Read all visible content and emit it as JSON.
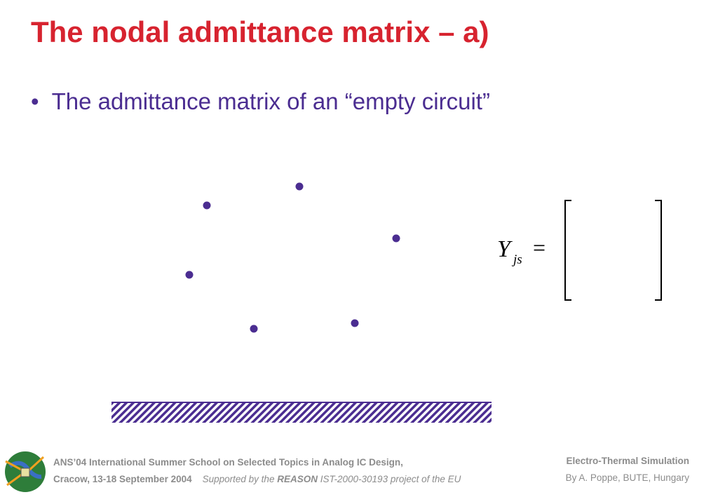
{
  "title": "The nodal admittance matrix – a)",
  "bullets": [
    "The admittance matrix of an “empty circuit”"
  ],
  "formula": {
    "symbol": "Y",
    "subscript": "js",
    "operator": "="
  },
  "footer": {
    "event": "ANS’04 International Summer School on Selected Topics in Analog IC Design,",
    "place_date": "Cracow, 13-18 September 2004",
    "support": [
      "Supported by the",
      "REASON",
      "IST-2000-30193 project of the EU"
    ],
    "course": "Electro-Thermal Simulation",
    "author": "By A. Poppe, BUTE, Hungary"
  }
}
